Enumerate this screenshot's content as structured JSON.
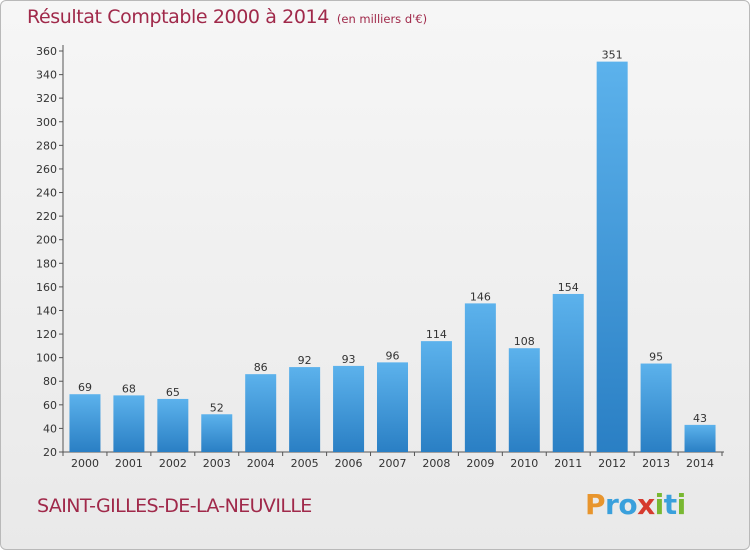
{
  "title": "Résultat Comptable 2000 à 2014",
  "subtitle": "(en milliers d'€)",
  "commune": "SAINT-GILLES-DE-LA-NEUVILLE",
  "logo": {
    "letters": [
      "P",
      "r",
      "o",
      "x",
      "i",
      "t",
      "i"
    ],
    "colors": [
      "#e8952d",
      "#3aa0dc",
      "#3aa0dc",
      "#d63a2e",
      "#79b832",
      "#3aa0dc",
      "#79b832"
    ]
  },
  "colors": {
    "bar_light": "#5cb2ec",
    "bar_dark": "#2a7fc4",
    "title": "#a0294a"
  },
  "chart_data": {
    "type": "bar",
    "title": "Résultat Comptable 2000 à 2014",
    "subtitle": "(en milliers d'€)",
    "categories": [
      "2000",
      "2001",
      "2002",
      "2003",
      "2004",
      "2005",
      "2006",
      "2007",
      "2008",
      "2009",
      "2010",
      "2011",
      "2012",
      "2013",
      "2014"
    ],
    "values": [
      69,
      68,
      65,
      52,
      86,
      92,
      93,
      96,
      114,
      146,
      108,
      154,
      351,
      95,
      43
    ],
    "data_labels": [
      "69",
      "68",
      "65",
      "52",
      "86",
      "92",
      "93",
      "96",
      "114",
      "146",
      "108",
      "154",
      "351",
      "95",
      "43"
    ],
    "yticks": [
      "20",
      "40",
      "60",
      "80",
      "100",
      "120",
      "140",
      "160",
      "180",
      "200",
      "220",
      "240",
      "260",
      "280",
      "300",
      "320",
      "340",
      "360"
    ],
    "ylim": [
      20,
      360
    ],
    "xlabel": "",
    "ylabel": "",
    "grid": false
  }
}
